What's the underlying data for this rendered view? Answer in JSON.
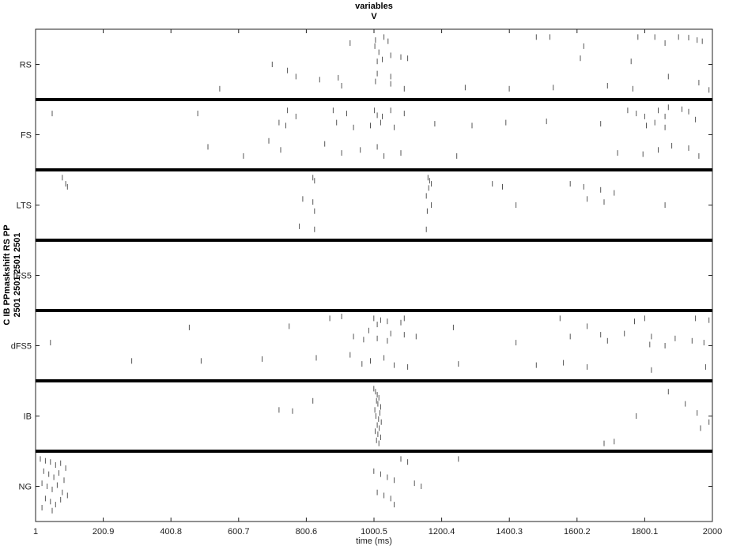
{
  "chart_data": {
    "type": "scatter",
    "subtype": "raster",
    "title": [
      "variables",
      "V"
    ],
    "xlabel": "time (ms)",
    "ylabel": [
      "C IB PPmaskshift RS PP",
      "2501 2501 2501 2501"
    ],
    "xlim": [
      1,
      2000
    ],
    "x_ticks": [
      "1",
      "200.9",
      "400.8",
      "600.7",
      "800.6",
      "1000.5",
      "1200.4",
      "1400.3",
      "1600.2",
      "1800.1",
      "2000"
    ],
    "grid": false,
    "categories": [
      "RS",
      "FS",
      "LTS",
      "tFS5",
      "dFS5",
      "IB",
      "NG"
    ],
    "series": [
      {
        "name": "RS",
        "values": [
          [
            930,
            0.15
          ],
          [
            1005,
            0.1
          ],
          [
            1030,
            0.05
          ],
          [
            1042,
            0.12
          ],
          [
            1003,
            0.2
          ],
          [
            1015,
            0.3
          ],
          [
            1050,
            0.35
          ],
          [
            1010,
            0.45
          ],
          [
            1025,
            0.42
          ],
          [
            1080,
            0.38
          ],
          [
            1100,
            0.4
          ],
          [
            1620,
            0.2
          ],
          [
            1860,
            0.15
          ],
          [
            1955,
            0.1
          ],
          [
            1930,
            0.06
          ],
          [
            1970,
            0.12
          ],
          [
            1610,
            0.4
          ],
          [
            1760,
            0.45
          ],
          [
            1830,
            0.05
          ],
          [
            1900,
            0.05
          ],
          [
            1780,
            0.05
          ],
          [
            1520,
            0.05
          ],
          [
            1480,
            0.05
          ],
          [
            700,
            0.5
          ],
          [
            745,
            0.6
          ],
          [
            770,
            0.7
          ],
          [
            840,
            0.75
          ],
          [
            895,
            0.72
          ],
          [
            1010,
            0.65
          ],
          [
            1050,
            0.7
          ],
          [
            545,
            0.9
          ],
          [
            905,
            0.85
          ],
          [
            1005,
            0.78
          ],
          [
            1050,
            0.82
          ],
          [
            1090,
            0.9
          ],
          [
            1270,
            0.88
          ],
          [
            1400,
            0.9
          ],
          [
            1530,
            0.88
          ],
          [
            1690,
            0.85
          ],
          [
            1765,
            0.9
          ],
          [
            1870,
            0.7
          ],
          [
            1960,
            0.8
          ],
          [
            1990,
            0.92
          ]
        ]
      },
      {
        "name": "FS",
        "values": [
          [
            50,
            0.15
          ],
          [
            480,
            0.15
          ],
          [
            745,
            0.1
          ],
          [
            770,
            0.2
          ],
          [
            880,
            0.1
          ],
          [
            920,
            0.15
          ],
          [
            1002,
            0.1
          ],
          [
            1010,
            0.18
          ],
          [
            1025,
            0.2
          ],
          [
            1050,
            0.1
          ],
          [
            1090,
            0.15
          ],
          [
            1870,
            0.05
          ],
          [
            1910,
            0.08
          ],
          [
            1750,
            0.1
          ],
          [
            1775,
            0.15
          ],
          [
            1800,
            0.2
          ],
          [
            1840,
            0.1
          ],
          [
            1860,
            0.2
          ],
          [
            1930,
            0.12
          ],
          [
            1950,
            0.25
          ],
          [
            720,
            0.3
          ],
          [
            740,
            0.35
          ],
          [
            890,
            0.3
          ],
          [
            940,
            0.38
          ],
          [
            990,
            0.35
          ],
          [
            1020,
            0.3
          ],
          [
            1060,
            0.38
          ],
          [
            1180,
            0.32
          ],
          [
            1290,
            0.35
          ],
          [
            1390,
            0.3
          ],
          [
            1510,
            0.28
          ],
          [
            1670,
            0.32
          ],
          [
            1805,
            0.35
          ],
          [
            1830,
            0.3
          ],
          [
            1860,
            0.38
          ],
          [
            510,
            0.7
          ],
          [
            615,
            0.85
          ],
          [
            690,
            0.6
          ],
          [
            725,
            0.75
          ],
          [
            855,
            0.65
          ],
          [
            905,
            0.8
          ],
          [
            960,
            0.75
          ],
          [
            1010,
            0.7
          ],
          [
            1030,
            0.85
          ],
          [
            1080,
            0.8
          ],
          [
            1245,
            0.85
          ],
          [
            1720,
            0.8
          ],
          [
            1795,
            0.82
          ],
          [
            1840,
            0.75
          ],
          [
            1880,
            0.68
          ],
          [
            1930,
            0.72
          ],
          [
            1960,
            0.85
          ]
        ]
      },
      {
        "name": "LTS",
        "values": [
          [
            80,
            0.05
          ],
          [
            90,
            0.15
          ],
          [
            95,
            0.2
          ],
          [
            820,
            0.05
          ],
          [
            825,
            0.1
          ],
          [
            1160,
            0.05
          ],
          [
            1165,
            0.1
          ],
          [
            1170,
            0.15
          ],
          [
            1162,
            0.22
          ],
          [
            1155,
            0.35
          ],
          [
            1170,
            0.5
          ],
          [
            1158,
            0.6
          ],
          [
            1350,
            0.15
          ],
          [
            1380,
            0.2
          ],
          [
            1580,
            0.15
          ],
          [
            1620,
            0.2
          ],
          [
            1670,
            0.25
          ],
          [
            1630,
            0.4
          ],
          [
            1710,
            0.3
          ],
          [
            1680,
            0.45
          ],
          [
            790,
            0.4
          ],
          [
            820,
            0.45
          ],
          [
            825,
            0.6
          ],
          [
            1420,
            0.5
          ],
          [
            1860,
            0.5
          ],
          [
            780,
            0.85
          ],
          [
            825,
            0.9
          ],
          [
            1155,
            0.9
          ]
        ]
      },
      {
        "name": "tFS5",
        "values": []
      },
      {
        "name": "dFS5",
        "values": [
          [
            870,
            0.05
          ],
          [
            905,
            0.02
          ],
          [
            1000,
            0.05
          ],
          [
            1020,
            0.08
          ],
          [
            1040,
            0.1
          ],
          [
            1090,
            0.05
          ],
          [
            1550,
            0.05
          ],
          [
            1800,
            0.05
          ],
          [
            1950,
            0.05
          ],
          [
            1990,
            0.08
          ],
          [
            455,
            0.2
          ],
          [
            750,
            0.18
          ],
          [
            1010,
            0.15
          ],
          [
            1080,
            0.12
          ],
          [
            1235,
            0.2
          ],
          [
            1770,
            0.1
          ],
          [
            1630,
            0.18
          ],
          [
            985,
            0.25
          ],
          [
            1050,
            0.3
          ],
          [
            1090,
            0.32
          ],
          [
            940,
            0.35
          ],
          [
            970,
            0.4
          ],
          [
            1010,
            0.38
          ],
          [
            1040,
            0.42
          ],
          [
            1125,
            0.35
          ],
          [
            1580,
            0.35
          ],
          [
            1670,
            0.32
          ],
          [
            1740,
            0.3
          ],
          [
            1820,
            0.35
          ],
          [
            1890,
            0.38
          ],
          [
            1940,
            0.42
          ],
          [
            45,
            0.45
          ],
          [
            1420,
            0.45
          ],
          [
            1690,
            0.42
          ],
          [
            1815,
            0.48
          ],
          [
            1860,
            0.5
          ],
          [
            1975,
            0.45
          ],
          [
            285,
            0.75
          ],
          [
            490,
            0.75
          ],
          [
            670,
            0.72
          ],
          [
            830,
            0.7
          ],
          [
            930,
            0.65
          ],
          [
            965,
            0.8
          ],
          [
            990,
            0.75
          ],
          [
            1030,
            0.7
          ],
          [
            1060,
            0.82
          ],
          [
            1100,
            0.85
          ],
          [
            1250,
            0.8
          ],
          [
            1480,
            0.82
          ],
          [
            1560,
            0.78
          ],
          [
            1630,
            0.85
          ],
          [
            1820,
            0.9
          ],
          [
            1980,
            0.85
          ]
        ]
      },
      {
        "name": "IB",
        "values": [
          [
            1000,
            0.05
          ],
          [
            1005,
            0.1
          ],
          [
            1010,
            0.15
          ],
          [
            1015,
            0.2
          ],
          [
            1008,
            0.25
          ],
          [
            1012,
            0.3
          ],
          [
            1020,
            0.35
          ],
          [
            1003,
            0.4
          ],
          [
            1018,
            0.45
          ],
          [
            1006,
            0.5
          ],
          [
            1014,
            0.55
          ],
          [
            1022,
            0.6
          ],
          [
            1010,
            0.65
          ],
          [
            1016,
            0.7
          ],
          [
            1004,
            0.75
          ],
          [
            1012,
            0.8
          ],
          [
            1020,
            0.85
          ],
          [
            1008,
            0.9
          ],
          [
            1015,
            0.95
          ],
          [
            820,
            0.25
          ],
          [
            720,
            0.4
          ],
          [
            760,
            0.42
          ],
          [
            1870,
            0.1
          ],
          [
            1920,
            0.3
          ],
          [
            1955,
            0.45
          ],
          [
            1990,
            0.6
          ],
          [
            1965,
            0.7
          ],
          [
            1775,
            0.5
          ],
          [
            1680,
            0.95
          ],
          [
            1710,
            0.92
          ]
        ]
      },
      {
        "name": "NG",
        "values": [
          [
            15,
            0.05
          ],
          [
            30,
            0.08
          ],
          [
            45,
            0.1
          ],
          [
            60,
            0.15
          ],
          [
            75,
            0.12
          ],
          [
            90,
            0.2
          ],
          [
            25,
            0.25
          ],
          [
            40,
            0.3
          ],
          [
            55,
            0.35
          ],
          [
            70,
            0.28
          ],
          [
            85,
            0.4
          ],
          [
            20,
            0.45
          ],
          [
            35,
            0.5
          ],
          [
            50,
            0.55
          ],
          [
            65,
            0.48
          ],
          [
            80,
            0.6
          ],
          [
            95,
            0.65
          ],
          [
            30,
            0.7
          ],
          [
            45,
            0.75
          ],
          [
            60,
            0.8
          ],
          [
            75,
            0.72
          ],
          [
            20,
            0.85
          ],
          [
            50,
            0.9
          ],
          [
            1000,
            0.25
          ],
          [
            1020,
            0.3
          ],
          [
            1040,
            0.35
          ],
          [
            1060,
            0.4
          ],
          [
            1080,
            0.05
          ],
          [
            1100,
            0.1
          ],
          [
            1120,
            0.45
          ],
          [
            1140,
            0.5
          ],
          [
            1250,
            0.05
          ],
          [
            1010,
            0.6
          ],
          [
            1030,
            0.65
          ],
          [
            1050,
            0.7
          ],
          [
            1060,
            0.8
          ]
        ]
      }
    ],
    "colors": {
      "spike": "#555555",
      "divider": "#000000",
      "axis": "#222222"
    }
  }
}
